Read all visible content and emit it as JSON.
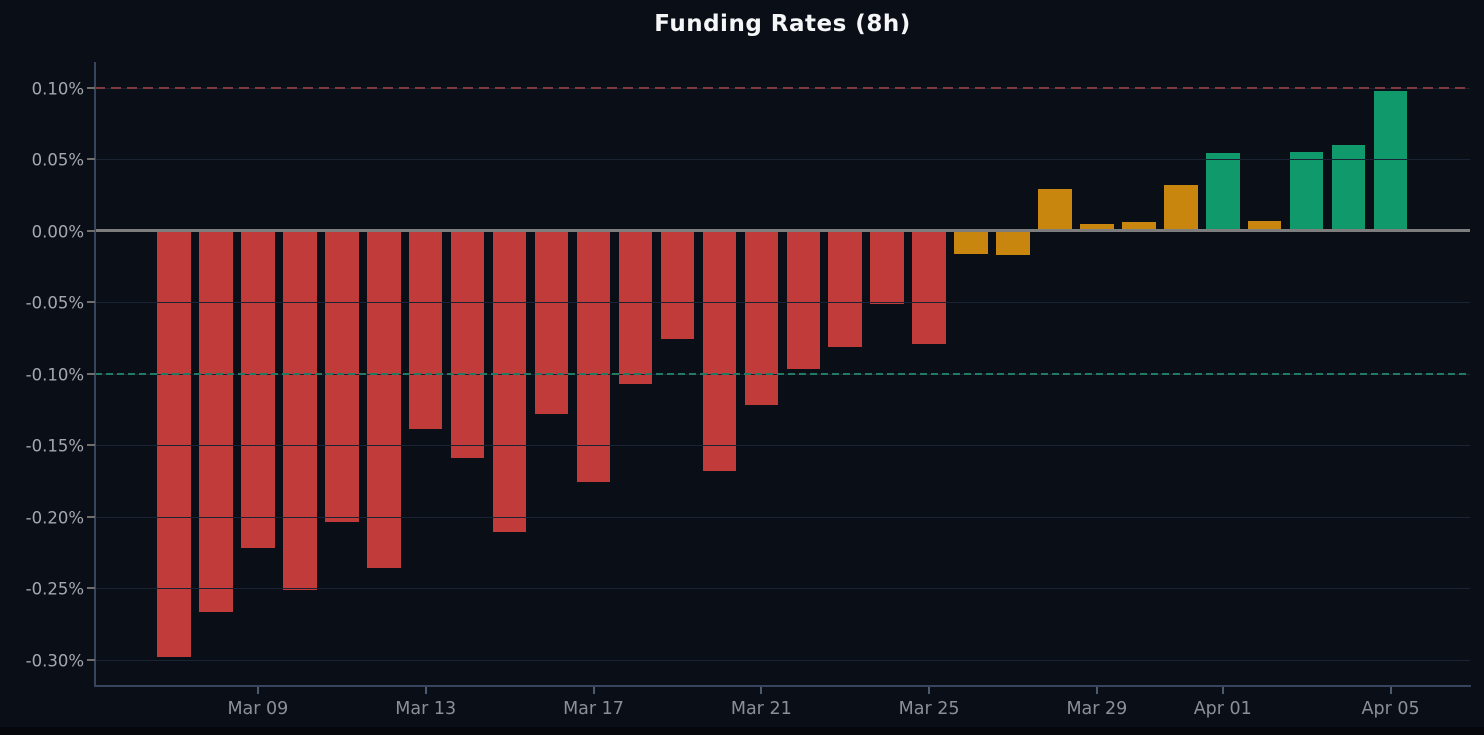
{
  "chart_data": {
    "type": "bar",
    "title": "Funding Rates (8h)",
    "unit": "%",
    "categories": [
      "Mar 07",
      "Mar 08",
      "Mar 09",
      "Mar 10",
      "Mar 11",
      "Mar 12",
      "Mar 13",
      "Mar 14",
      "Mar 15",
      "Mar 16",
      "Mar 17",
      "Mar 18",
      "Mar 19",
      "Mar 20",
      "Mar 21",
      "Mar 22",
      "Mar 23",
      "Mar 24",
      "Mar 25",
      "Mar 26",
      "Mar 27",
      "Mar 28",
      "Mar 29",
      "Mar 30",
      "Mar 31",
      "Apr 01",
      "Apr 02",
      "Apr 03",
      "Apr 04",
      "Apr 05"
    ],
    "values": [
      -0.298,
      -0.267,
      -0.222,
      -0.251,
      -0.204,
      -0.236,
      -0.139,
      -0.159,
      -0.211,
      -0.128,
      -0.176,
      -0.107,
      -0.076,
      -0.168,
      -0.122,
      -0.097,
      -0.081,
      -0.051,
      -0.079,
      -0.016,
      -0.017,
      0.029,
      0.005,
      0.006,
      0.032,
      0.054,
      0.007,
      0.055,
      0.06,
      0.098
    ],
    "xlabel": "",
    "ylabel": "",
    "ylim": [
      -0.32,
      0.118
    ],
    "grid": true,
    "legend": false,
    "y_ticks": {
      "values": [
        0.1,
        0.05,
        0.0,
        -0.05,
        -0.1,
        -0.15,
        -0.2,
        -0.25,
        -0.3
      ],
      "labels": [
        "0.10%",
        "0.05%",
        "0.00%",
        "-0.05%",
        "-0.10%",
        "-0.15%",
        "-0.20%",
        "-0.25%",
        "-0.30%"
      ]
    },
    "x_tick_labels": [
      "Mar 09",
      "Mar 13",
      "Mar 17",
      "Mar 21",
      "Mar 25",
      "Mar 29",
      "Apr 01",
      "Apr 05"
    ],
    "palette": {
      "negative_red": "#c23b3b",
      "neutral_orange": "#c8860e",
      "positive_green": "#109a6c"
    },
    "color_rule": {
      "green_if_at_least": 0.05,
      "red_if_at_most": -0.05
    },
    "reference_lines": [
      {
        "name": "upper-funding-cap",
        "value": 0.1,
        "style": "dashed",
        "color": "#7f3a3f"
      },
      {
        "name": "lower-funding-cap",
        "value": -0.1,
        "style": "dashed",
        "color": "#227a62"
      },
      {
        "name": "zero-line",
        "value": 0.0,
        "style": "solid",
        "color": "#7d7d7d"
      }
    ]
  }
}
